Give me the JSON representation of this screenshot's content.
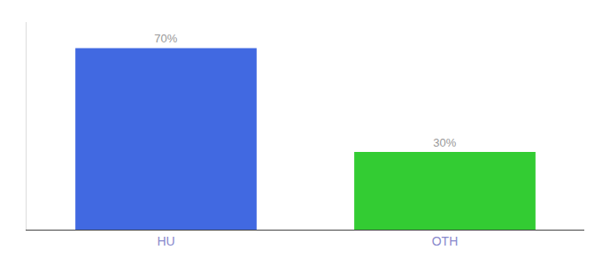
{
  "chart_data": {
    "type": "bar",
    "categories": [
      "HU",
      "OTH"
    ],
    "values": [
      70,
      30
    ],
    "value_labels": [
      "70%",
      "30%"
    ],
    "colors": [
      "#4169e1",
      "#33cc33"
    ],
    "ylim": [
      0,
      80
    ],
    "grid": false,
    "data_labels": true,
    "tick_labels": "x"
  }
}
